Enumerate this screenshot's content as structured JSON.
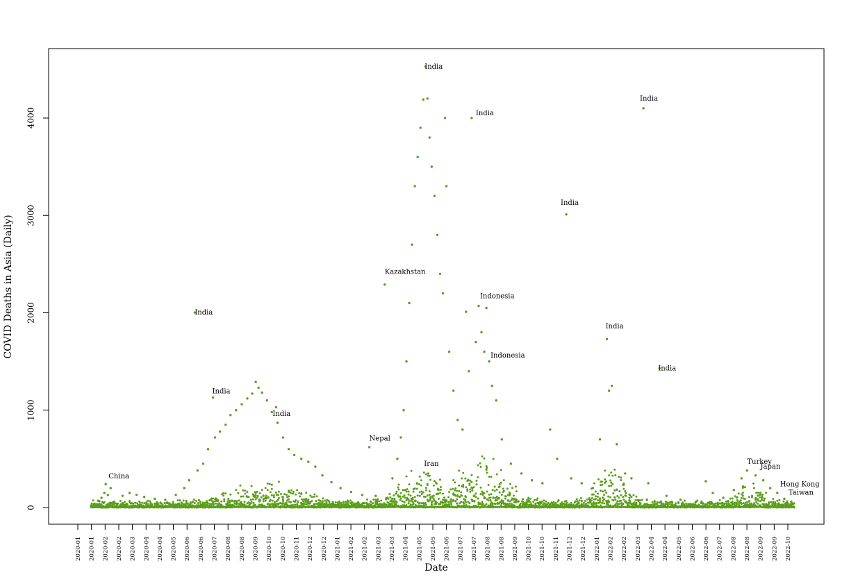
{
  "chart_data": {
    "type": "scatter",
    "title": "",
    "xlabel": "Date",
    "ylabel": "COVID Deaths in Asia (Daily)",
    "ylim": [
      0,
      4500
    ],
    "yticks": [
      0,
      1000,
      2000,
      3000,
      4000
    ],
    "xlim": [
      "2020-01-01",
      "2022-10-31"
    ],
    "grid": false,
    "legend": "none",
    "point_color": "#5a9e1a",
    "xtick_labels": [
      "2020-01",
      "2020-01",
      "2020-02",
      "2020-02",
      "2020-03",
      "2020-04",
      "2020-04",
      "2020-05",
      "2020-06",
      "2020-06",
      "2020-07",
      "2020-08",
      "2020-08",
      "2020-09",
      "2020-10",
      "2020-10",
      "2020-11",
      "2020-12",
      "2020-12",
      "2021-01",
      "2021-02",
      "2021-02",
      "2021-03",
      "2021-03",
      "2021-04",
      "2021-05",
      "2021-05",
      "2021-06",
      "2021-07",
      "2021-07",
      "2021-08",
      "2021-08",
      "2021-09",
      "2021-10",
      "2021-10",
      "2021-11",
      "2021-12",
      "2021-12",
      "2022-01",
      "2022-02",
      "2022-02",
      "2022-03",
      "2022-04",
      "2022-04",
      "2022-05",
      "2022-06",
      "2022-06",
      "2022-07",
      "2022-08",
      "2022-08",
      "2022-09",
      "2022-09",
      "2022-10"
    ],
    "annotations": [
      {
        "label": "China",
        "x": "2020-02-14",
        "y": 320
      },
      {
        "label": "India",
        "x": "2020-06-16",
        "y": 2003
      },
      {
        "label": "India",
        "x": "2020-07-11",
        "y": 1195
      },
      {
        "label": "India",
        "x": "2020-10-05",
        "y": 962
      },
      {
        "label": "Nepal",
        "x": "2021-02-20",
        "y": 710
      },
      {
        "label": "Kazakhstan",
        "x": "2021-03-14",
        "y": 2420
      },
      {
        "label": "Iran",
        "x": "2021-05-09",
        "y": 450
      },
      {
        "label": "India",
        "x": "2021-05-10",
        "y": 4529
      },
      {
        "label": "India",
        "x": "2021-07-22",
        "y": 4050
      },
      {
        "label": "Indonesia",
        "x": "2021-07-28",
        "y": 2170
      },
      {
        "label": "Indonesia",
        "x": "2021-08-12",
        "y": 1560
      },
      {
        "label": "India",
        "x": "2021-11-20",
        "y": 3130
      },
      {
        "label": "India",
        "x": "2022-01-23",
        "y": 1860
      },
      {
        "label": "India",
        "x": "2022-03-13",
        "y": 4200
      },
      {
        "label": "India",
        "x": "2022-04-08",
        "y": 1430
      },
      {
        "label": "Turkey",
        "x": "2022-08-13",
        "y": 470
      },
      {
        "label": "Japan",
        "x": "2022-09-01",
        "y": 420
      },
      {
        "label": "Hong Kong",
        "x": "2022-09-29",
        "y": 240
      },
      {
        "label": "Taiwan",
        "x": "2022-10-11",
        "y": 155
      }
    ],
    "series": [
      {
        "points": [
          [
            "2020-01-20",
            5
          ],
          [
            "2020-01-25",
            40
          ],
          [
            "2020-01-30",
            70
          ],
          [
            "2020-02-04",
            100
          ],
          [
            "2020-02-08",
            150
          ],
          [
            "2020-02-10",
            240
          ],
          [
            "2020-02-13",
            130
          ],
          [
            "2020-02-17",
            200
          ],
          [
            "2020-02-22",
            60
          ],
          [
            "2020-02-27",
            40
          ],
          [
            "2020-03-05",
            120
          ],
          [
            "2020-03-15",
            150
          ],
          [
            "2020-03-25",
            130
          ],
          [
            "2020-04-05",
            110
          ],
          [
            "2020-04-20",
            90
          ],
          [
            "2020-05-05",
            80
          ],
          [
            "2020-05-20",
            130
          ],
          [
            "2020-06-01",
            200
          ],
          [
            "2020-06-08",
            280
          ],
          [
            "2020-06-16",
            2003
          ],
          [
            "2020-06-20",
            380
          ],
          [
            "2020-06-28",
            450
          ],
          [
            "2020-07-05",
            600
          ],
          [
            "2020-07-12",
            1130
          ],
          [
            "2020-07-15",
            720
          ],
          [
            "2020-07-22",
            780
          ],
          [
            "2020-07-30",
            850
          ],
          [
            "2020-08-06",
            950
          ],
          [
            "2020-08-14",
            1000
          ],
          [
            "2020-08-22",
            1060
          ],
          [
            "2020-08-30",
            1120
          ],
          [
            "2020-09-06",
            1170
          ],
          [
            "2020-09-11",
            1290
          ],
          [
            "2020-09-15",
            1230
          ],
          [
            "2020-09-20",
            1180
          ],
          [
            "2020-09-27",
            1100
          ],
          [
            "2020-10-04",
            980
          ],
          [
            "2020-10-10",
            1030
          ],
          [
            "2020-10-12",
            870
          ],
          [
            "2020-10-20",
            720
          ],
          [
            "2020-10-28",
            600
          ],
          [
            "2020-11-05",
            540
          ],
          [
            "2020-11-15",
            500
          ],
          [
            "2020-11-25",
            470
          ],
          [
            "2020-12-05",
            420
          ],
          [
            "2020-12-15",
            330
          ],
          [
            "2020-12-28",
            260
          ],
          [
            "2021-01-10",
            200
          ],
          [
            "2021-01-25",
            160
          ],
          [
            "2021-02-10",
            130
          ],
          [
            "2021-02-20",
            620
          ],
          [
            "2021-03-01",
            120
          ],
          [
            "2021-03-14",
            2290
          ],
          [
            "2021-03-25",
            300
          ],
          [
            "2021-04-01",
            500
          ],
          [
            "2021-04-06",
            720
          ],
          [
            "2021-04-10",
            1000
          ],
          [
            "2021-04-14",
            1500
          ],
          [
            "2021-04-18",
            2100
          ],
          [
            "2021-04-22",
            2700
          ],
          [
            "2021-04-26",
            3300
          ],
          [
            "2021-04-30",
            3600
          ],
          [
            "2021-05-04",
            3900
          ],
          [
            "2021-05-08",
            4190
          ],
          [
            "2021-05-11",
            4529
          ],
          [
            "2021-05-14",
            4200
          ],
          [
            "2021-05-17",
            3800
          ],
          [
            "2021-05-20",
            3500
          ],
          [
            "2021-05-24",
            3200
          ],
          [
            "2021-05-28",
            2800
          ],
          [
            "2021-06-01",
            2400
          ],
          [
            "2021-06-05",
            2200
          ],
          [
            "2021-06-08",
            4000
          ],
          [
            "2021-06-10",
            3300
          ],
          [
            "2021-06-14",
            1600
          ],
          [
            "2021-06-20",
            1200
          ],
          [
            "2021-06-26",
            900
          ],
          [
            "2021-07-03",
            800
          ],
          [
            "2021-07-08",
            2010
          ],
          [
            "2021-07-12",
            1400
          ],
          [
            "2021-07-16",
            4000
          ],
          [
            "2021-07-22",
            1700
          ],
          [
            "2021-07-26",
            2070
          ],
          [
            "2021-07-30",
            1800
          ],
          [
            "2021-08-03",
            1600
          ],
          [
            "2021-08-06",
            2050
          ],
          [
            "2021-08-10",
            1500
          ],
          [
            "2021-08-14",
            1250
          ],
          [
            "2021-08-20",
            1100
          ],
          [
            "2021-08-28",
            700
          ],
          [
            "2021-09-10",
            450
          ],
          [
            "2021-09-25",
            350
          ],
          [
            "2021-10-10",
            280
          ],
          [
            "2021-10-25",
            250
          ],
          [
            "2021-11-05",
            800
          ],
          [
            "2021-11-15",
            500
          ],
          [
            "2021-11-28",
            3010
          ],
          [
            "2021-12-05",
            300
          ],
          [
            "2021-12-20",
            250
          ],
          [
            "2022-01-05",
            200
          ],
          [
            "2022-01-15",
            700
          ],
          [
            "2022-01-25",
            1730
          ],
          [
            "2022-01-28",
            1200
          ],
          [
            "2022-02-01",
            1250
          ],
          [
            "2022-02-08",
            650
          ],
          [
            "2022-02-20",
            350
          ],
          [
            "2022-03-01",
            300
          ],
          [
            "2022-03-18",
            4100
          ],
          [
            "2022-03-25",
            250
          ],
          [
            "2022-04-10",
            1430
          ],
          [
            "2022-04-20",
            120
          ],
          [
            "2022-05-10",
            80
          ],
          [
            "2022-06-01",
            60
          ],
          [
            "2022-06-15",
            270
          ],
          [
            "2022-06-25",
            150
          ],
          [
            "2022-07-10",
            100
          ],
          [
            "2022-07-25",
            180
          ],
          [
            "2022-08-05",
            300
          ],
          [
            "2022-08-13",
            380
          ],
          [
            "2022-08-25",
            330
          ],
          [
            "2022-09-05",
            280
          ],
          [
            "2022-09-15",
            200
          ],
          [
            "2022-09-25",
            150
          ],
          [
            "2022-10-05",
            90
          ],
          [
            "2022-10-15",
            60
          ]
        ]
      }
    ]
  }
}
